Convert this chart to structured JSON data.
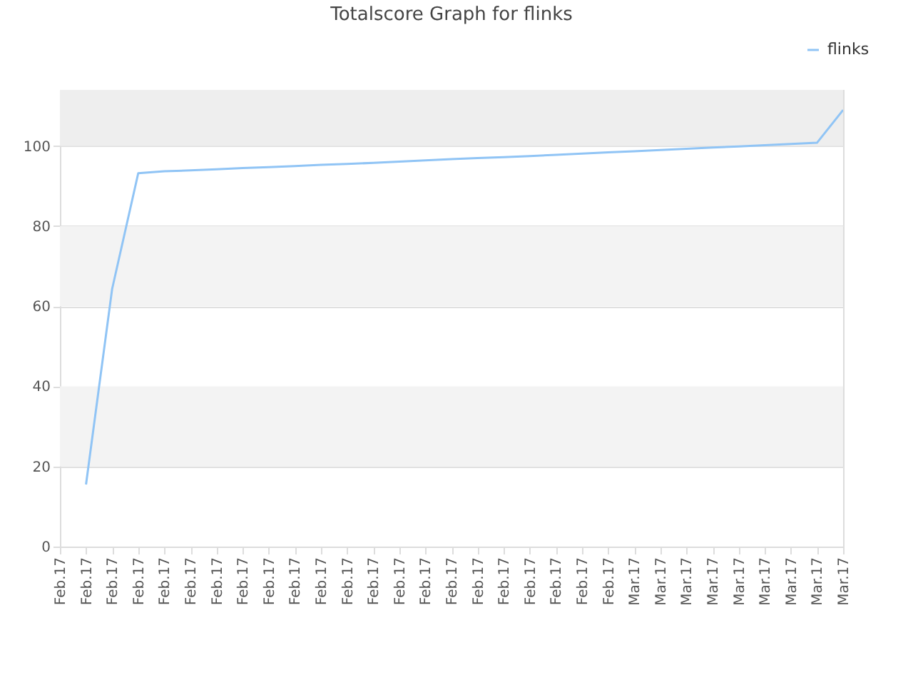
{
  "chart_data": {
    "type": "line",
    "title": "Totalscore Graph for flinks",
    "categories": [
      "Feb.17",
      "Feb.17",
      "Feb.17",
      "Feb.17",
      "Feb.17",
      "Feb.17",
      "Feb.17",
      "Feb.17",
      "Feb.17",
      "Feb.17",
      "Feb.17",
      "Feb.17",
      "Feb.17",
      "Feb.17",
      "Feb.17",
      "Feb.17",
      "Feb.17",
      "Feb.17",
      "Feb.17",
      "Feb.17",
      "Feb.17",
      "Feb.17",
      "Mar.17",
      "Mar.17",
      "Mar.17",
      "Mar.17",
      "Mar.17",
      "Mar.17",
      "Mar.17",
      "Mar.17",
      "Mar.17"
    ],
    "series": [
      {
        "name": "flinks",
        "color": "#90c4f5",
        "values": [
          null,
          15.5,
          64.3,
          93.2,
          93.7,
          93.9,
          94.2,
          94.5,
          94.7,
          95.0,
          95.3,
          95.5,
          95.8,
          96.1,
          96.4,
          96.7,
          97.0,
          97.2,
          97.5,
          97.8,
          98.1,
          98.4,
          98.7,
          99.0,
          99.3,
          99.6,
          99.9,
          100.2,
          100.5,
          100.8,
          109
        ]
      }
    ],
    "ylim": [
      0,
      114
    ],
    "yticks": [
      0,
      20,
      40,
      60,
      80,
      100
    ],
    "bands": [
      {
        "axis": "y",
        "from": 20,
        "to": 40,
        "color": "#f3f3f3"
      },
      {
        "axis": "y",
        "from": 60,
        "to": 80,
        "color": "#f3f3f3"
      },
      {
        "axis": "y",
        "from": 100,
        "to": 114,
        "color": "#eeeeee"
      }
    ],
    "grid": "y",
    "legend": "top right",
    "marker": "none",
    "line_style": "solid"
  }
}
